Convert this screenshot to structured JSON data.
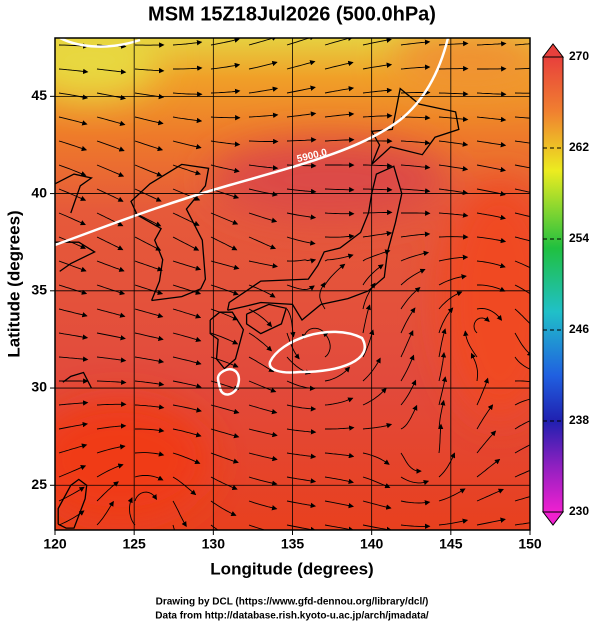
{
  "chart_data": {
    "type": "map",
    "title": "MSM 15Z18Jul2026 (500.0hPa)",
    "x_label": "Longitude (degrees)",
    "y_label": "Latitude  (degrees)",
    "xlim": [
      120,
      150
    ],
    "ylim": [
      22.7,
      48
    ],
    "xticks": [
      120,
      125,
      130,
      135,
      140,
      145,
      150
    ],
    "yticks": [
      25,
      30,
      35,
      40,
      45
    ],
    "colorbar": {
      "lim": [
        230,
        270
      ],
      "ticks": [
        230,
        238,
        246,
        254,
        262,
        270
      ]
    },
    "contour_label": "5900.0"
  },
  "footer": [
    "Drawing by DCL (https://www.gfd-dennou.org/library/dcl/)",
    "Data from http://database.rish.kyoto-u.ac.jp/arch/jmadata/"
  ]
}
